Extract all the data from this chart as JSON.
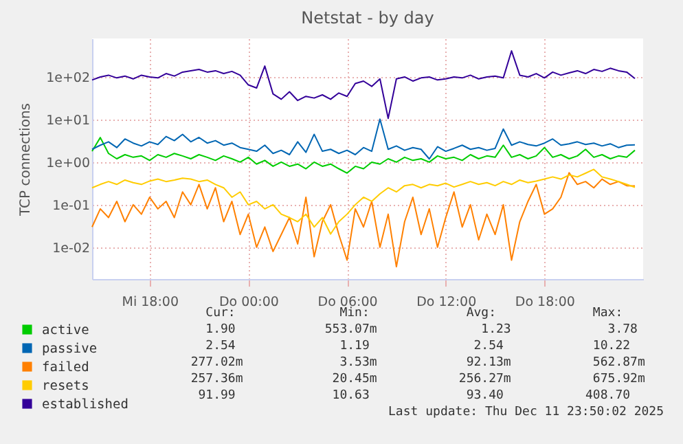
{
  "chart_data": {
    "type": "line",
    "title": "Netstat - by day",
    "ylabel": "TCP connections",
    "log": true,
    "grid": true,
    "legend": "bottom left",
    "xlim": [
      "2025-12-10T14:30",
      "2025-12-12T00:00"
    ],
    "xticks": [
      {
        "value": "2025-12-10T18:00",
        "label": "Mi 18:00"
      },
      {
        "value": "2025-12-11T00:00",
        "label": "Do 00:00"
      },
      {
        "value": "2025-12-11T06:00",
        "label": "Do 06:00"
      },
      {
        "value": "2025-12-11T12:00",
        "label": "Do 12:00"
      },
      {
        "value": "2025-12-11T18:00",
        "label": "Do 18:00"
      }
    ],
    "ylim": [
      0.0018,
      800
    ],
    "yticks": [
      {
        "value": 0.01,
        "label": "1e-02"
      },
      {
        "value": 0.1,
        "label": "1e-01"
      },
      {
        "value": 1,
        "label": "1e+00"
      },
      {
        "value": 10,
        "label": "1e+01"
      },
      {
        "value": 100,
        "label": "1e+02"
      }
    ],
    "x": [
      "2025-12-10T14:30",
      "2025-12-10T15:00",
      "2025-12-10T15:30",
      "2025-12-10T16:00",
      "2025-12-10T16:30",
      "2025-12-10T17:00",
      "2025-12-10T17:30",
      "2025-12-10T18:00",
      "2025-12-10T18:30",
      "2025-12-10T19:00",
      "2025-12-10T19:30",
      "2025-12-10T20:00",
      "2025-12-10T20:30",
      "2025-12-10T21:00",
      "2025-12-10T21:30",
      "2025-12-10T22:00",
      "2025-12-10T22:30",
      "2025-12-10T23:00",
      "2025-12-10T23:30",
      "2025-12-11T00:00",
      "2025-12-11T00:30",
      "2025-12-11T01:00",
      "2025-12-11T01:30",
      "2025-12-11T02:00",
      "2025-12-11T02:30",
      "2025-12-11T03:00",
      "2025-12-11T03:30",
      "2025-12-11T04:00",
      "2025-12-11T04:30",
      "2025-12-11T05:00",
      "2025-12-11T05:30",
      "2025-12-11T06:00",
      "2025-12-11T06:30",
      "2025-12-11T07:00",
      "2025-12-11T07:30",
      "2025-12-11T08:00",
      "2025-12-11T08:30",
      "2025-12-11T09:00",
      "2025-12-11T09:30",
      "2025-12-11T10:00",
      "2025-12-11T10:30",
      "2025-12-11T11:00",
      "2025-12-11T11:30",
      "2025-12-11T12:00",
      "2025-12-11T12:30",
      "2025-12-11T13:00",
      "2025-12-11T13:30",
      "2025-12-11T14:00",
      "2025-12-11T14:30",
      "2025-12-11T15:00",
      "2025-12-11T15:30",
      "2025-12-11T16:00",
      "2025-12-11T16:30",
      "2025-12-11T17:00",
      "2025-12-11T17:30",
      "2025-12-11T18:00",
      "2025-12-11T18:30",
      "2025-12-11T19:00",
      "2025-12-11T19:30",
      "2025-12-11T20:00",
      "2025-12-11T20:30",
      "2025-12-11T21:00",
      "2025-12-11T21:30",
      "2025-12-11T22:00",
      "2025-12-11T22:30",
      "2025-12-11T23:00",
      "2025-12-11T23:30"
    ],
    "series": [
      {
        "name": "active",
        "color": "#00cc00",
        "values": [
          1.8,
          3.78,
          1.6,
          1.2,
          1.5,
          1.3,
          1.4,
          1.1,
          1.5,
          1.3,
          1.6,
          1.4,
          1.2,
          1.5,
          1.3,
          1.1,
          1.4,
          1.2,
          1.0,
          1.3,
          0.9,
          1.1,
          0.8,
          1.0,
          0.8,
          0.9,
          0.7,
          1.0,
          0.8,
          0.9,
          0.7,
          0.553,
          0.8,
          0.7,
          1.0,
          0.9,
          1.2,
          1.0,
          1.3,
          1.1,
          1.2,
          1.0,
          1.4,
          1.2,
          1.3,
          1.1,
          1.5,
          1.2,
          1.4,
          1.3,
          2.5,
          1.3,
          1.5,
          1.2,
          1.4,
          2.2,
          1.3,
          1.5,
          1.2,
          1.4,
          2.0,
          1.3,
          1.5,
          1.2,
          1.4,
          1.3,
          1.9
        ]
      },
      {
        "name": "passive",
        "color": "#0066b3",
        "values": [
          2.0,
          2.5,
          3.0,
          2.2,
          3.5,
          2.8,
          2.4,
          3.0,
          2.6,
          4.0,
          3.2,
          4.5,
          3.0,
          3.8,
          2.8,
          3.2,
          2.5,
          2.8,
          2.2,
          2.0,
          1.8,
          2.5,
          1.6,
          1.9,
          1.5,
          3.0,
          1.7,
          4.5,
          1.8,
          2.0,
          1.6,
          1.9,
          1.5,
          2.2,
          1.8,
          10.22,
          2.0,
          2.4,
          1.9,
          2.2,
          2.0,
          1.19,
          2.3,
          1.8,
          2.1,
          2.5,
          2.0,
          2.2,
          1.9,
          2.1,
          6.0,
          2.5,
          3.0,
          2.6,
          2.4,
          2.8,
          3.5,
          2.5,
          2.7,
          3.0,
          2.6,
          2.8,
          2.4,
          2.7,
          2.2,
          2.5,
          2.54
        ]
      },
      {
        "name": "failed",
        "color": "#ff8000",
        "values": [
          0.03,
          0.08,
          0.05,
          0.12,
          0.04,
          0.1,
          0.06,
          0.15,
          0.08,
          0.12,
          0.05,
          0.2,
          0.1,
          0.3,
          0.08,
          0.25,
          0.04,
          0.12,
          0.02,
          0.06,
          0.01,
          0.03,
          0.008,
          0.02,
          0.05,
          0.012,
          0.15,
          0.006,
          0.04,
          0.1,
          0.02,
          0.005,
          0.08,
          0.03,
          0.12,
          0.01,
          0.06,
          0.0035,
          0.04,
          0.15,
          0.02,
          0.08,
          0.01,
          0.05,
          0.2,
          0.03,
          0.1,
          0.015,
          0.06,
          0.02,
          0.1,
          0.005,
          0.04,
          0.12,
          0.3,
          0.06,
          0.08,
          0.15,
          0.563,
          0.3,
          0.35,
          0.25,
          0.4,
          0.3,
          0.35,
          0.28,
          0.277
        ]
      },
      {
        "name": "resets",
        "color": "#ffcc00",
        "values": [
          0.25,
          0.3,
          0.35,
          0.3,
          0.38,
          0.33,
          0.3,
          0.36,
          0.4,
          0.35,
          0.38,
          0.42,
          0.4,
          0.35,
          0.38,
          0.3,
          0.25,
          0.15,
          0.2,
          0.1,
          0.12,
          0.08,
          0.1,
          0.06,
          0.05,
          0.04,
          0.06,
          0.03,
          0.05,
          0.0205,
          0.04,
          0.06,
          0.1,
          0.15,
          0.12,
          0.18,
          0.25,
          0.2,
          0.28,
          0.3,
          0.25,
          0.3,
          0.28,
          0.32,
          0.26,
          0.3,
          0.35,
          0.3,
          0.33,
          0.28,
          0.35,
          0.3,
          0.38,
          0.33,
          0.36,
          0.4,
          0.45,
          0.4,
          0.5,
          0.45,
          0.55,
          0.676,
          0.45,
          0.4,
          0.35,
          0.3,
          0.257
        ]
      },
      {
        "name": "established",
        "color": "#330099",
        "values": [
          85,
          100,
          110,
          95,
          105,
          90,
          110,
          100,
          95,
          120,
          105,
          130,
          140,
          150,
          130,
          140,
          120,
          135,
          110,
          65,
          55,
          180,
          40,
          30,
          45,
          28,
          35,
          32,
          38,
          30,
          42,
          35,
          70,
          80,
          60,
          90,
          10.63,
          90,
          100,
          80,
          95,
          100,
          85,
          90,
          100,
          95,
          110,
          90,
          100,
          105,
          95,
          408.7,
          110,
          100,
          120,
          95,
          130,
          110,
          125,
          140,
          120,
          150,
          135,
          160,
          140,
          130,
          91.99
        ]
      }
    ],
    "annotations": [
      "    Cur:              Min:             Avg:             Max:",
      "    1.90            553.07m              1.23             3.78",
      "    2.54              1.19              2.54            10.22",
      "  277.02m             3.53m            92.13m           562.87m",
      "  257.36m            20.45m           256.27m           675.92m",
      "   91.99             10.63             93.40           408.70",
      "Last update: Thu Dec 11 23:50:02 2025"
    ]
  }
}
